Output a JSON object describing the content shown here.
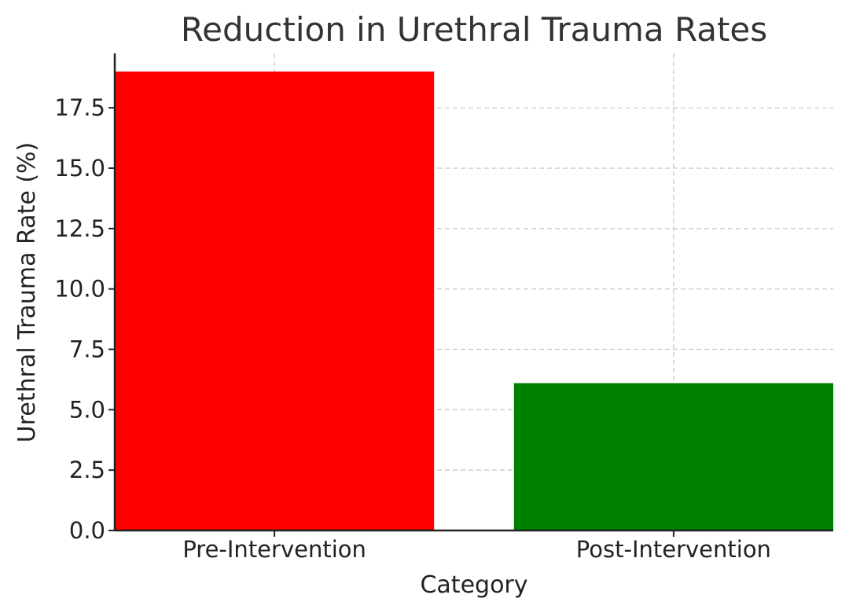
{
  "chart_data": {
    "type": "bar",
    "title": "Reduction in Urethral Trauma Rates",
    "xlabel": "Category",
    "ylabel": "Urethral Trauma Rate (%)",
    "categories": [
      "Pre-Intervention",
      "Post-Intervention"
    ],
    "values": [
      19.0,
      6.1
    ],
    "colors": [
      "#ff0000",
      "#008000"
    ],
    "ylim": [
      0,
      19.75
    ],
    "yticks": [
      0,
      2.5,
      5,
      7.5,
      10,
      12.5,
      15,
      17.5
    ],
    "ytick_labels": [
      "0.0",
      "2.5",
      "5.0",
      "7.5",
      "10.0",
      "12.5",
      "15.0",
      "17.5"
    ],
    "grid": true
  }
}
